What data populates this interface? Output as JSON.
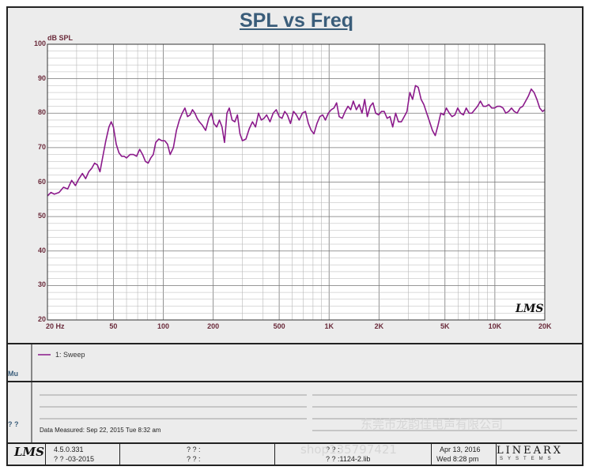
{
  "chart_data": {
    "type": "line",
    "title": "SPL vs Freq",
    "ylabel": "dB SPL",
    "ylim": [
      20,
      100
    ],
    "yticks": [
      "100",
      "90",
      "80",
      "70",
      "60",
      "50",
      "40",
      "30",
      "20"
    ],
    "xscale": "log",
    "xlim": [
      20,
      20000
    ],
    "xticks": [
      {
        "v": 20,
        "label": "20  Hz"
      },
      {
        "v": 50,
        "label": "50"
      },
      {
        "v": 100,
        "label": "100"
      },
      {
        "v": 200,
        "label": "200"
      },
      {
        "v": 500,
        "label": "500"
      },
      {
        "v": 1000,
        "label": "1K"
      },
      {
        "v": 2000,
        "label": "2K"
      },
      {
        "v": 5000,
        "label": "5K"
      },
      {
        "v": 10000,
        "label": "10K"
      },
      {
        "v": 20000,
        "label": "20K"
      }
    ],
    "grid": true,
    "series": [
      {
        "name": "1: Sweep",
        "color": "#8b1a8b",
        "points": [
          [
            20,
            56
          ],
          [
            21,
            57
          ],
          [
            22,
            56.5
          ],
          [
            23.5,
            57
          ],
          [
            25,
            58.5
          ],
          [
            26.5,
            58
          ],
          [
            28,
            60.5
          ],
          [
            29.5,
            59
          ],
          [
            31,
            61
          ],
          [
            32.5,
            62.5
          ],
          [
            34,
            61
          ],
          [
            35.5,
            63
          ],
          [
            37,
            64
          ],
          [
            38.5,
            65.5
          ],
          [
            40,
            65
          ],
          [
            41.5,
            63
          ],
          [
            43,
            67
          ],
          [
            45,
            72
          ],
          [
            47,
            76
          ],
          [
            48.5,
            77.5
          ],
          [
            50,
            76
          ],
          [
            52,
            71
          ],
          [
            54,
            68.5
          ],
          [
            56,
            67.5
          ],
          [
            58,
            67.5
          ],
          [
            60,
            67
          ],
          [
            63,
            68
          ],
          [
            66,
            68
          ],
          [
            69,
            67.5
          ],
          [
            72,
            69.5
          ],
          [
            75,
            68
          ],
          [
            78,
            66
          ],
          [
            81,
            65.5
          ],
          [
            84,
            67
          ],
          [
            87,
            68
          ],
          [
            90,
            71.5
          ],
          [
            94,
            72.5
          ],
          [
            98,
            72
          ],
          [
            102,
            72
          ],
          [
            106,
            71
          ],
          [
            110,
            68
          ],
          [
            115,
            70
          ],
          [
            120,
            75
          ],
          [
            125,
            78
          ],
          [
            130,
            80
          ],
          [
            135,
            81.5
          ],
          [
            140,
            79
          ],
          [
            145,
            79.5
          ],
          [
            150,
            81
          ],
          [
            155,
            80
          ],
          [
            160,
            78.5
          ],
          [
            165,
            77.5
          ],
          [
            172,
            76.5
          ],
          [
            180,
            75
          ],
          [
            188,
            78.5
          ],
          [
            195,
            80
          ],
          [
            202,
            77
          ],
          [
            210,
            76
          ],
          [
            218,
            78
          ],
          [
            226,
            76
          ],
          [
            234,
            71.5
          ],
          [
            242,
            80
          ],
          [
            250,
            81.5
          ],
          [
            260,
            78
          ],
          [
            270,
            77.5
          ],
          [
            280,
            79.5
          ],
          [
            290,
            74
          ],
          [
            300,
            72
          ],
          [
            315,
            72.5
          ],
          [
            330,
            75.5
          ],
          [
            345,
            77.5
          ],
          [
            360,
            76
          ],
          [
            375,
            80
          ],
          [
            390,
            78
          ],
          [
            405,
            78.5
          ],
          [
            420,
            79.5
          ],
          [
            440,
            77.5
          ],
          [
            460,
            80
          ],
          [
            480,
            81
          ],
          [
            500,
            79
          ],
          [
            520,
            78.5
          ],
          [
            540,
            80.5
          ],
          [
            560,
            79.5
          ],
          [
            585,
            77
          ],
          [
            610,
            80.5
          ],
          [
            635,
            79.5
          ],
          [
            660,
            78
          ],
          [
            690,
            80
          ],
          [
            720,
            80.5
          ],
          [
            750,
            77
          ],
          [
            780,
            75
          ],
          [
            810,
            74
          ],
          [
            845,
            77
          ],
          [
            880,
            79
          ],
          [
            915,
            79.5
          ],
          [
            950,
            78
          ],
          [
            990,
            80
          ],
          [
            1030,
            81
          ],
          [
            1070,
            81.5
          ],
          [
            1110,
            83
          ],
          [
            1150,
            79
          ],
          [
            1200,
            78.5
          ],
          [
            1250,
            80.5
          ],
          [
            1300,
            82
          ],
          [
            1350,
            81
          ],
          [
            1400,
            83.5
          ],
          [
            1460,
            81
          ],
          [
            1520,
            82.5
          ],
          [
            1580,
            80
          ],
          [
            1640,
            84
          ],
          [
            1700,
            79
          ],
          [
            1770,
            82
          ],
          [
            1840,
            83
          ],
          [
            1910,
            80
          ],
          [
            1990,
            79.5
          ],
          [
            2070,
            80.5
          ],
          [
            2150,
            80.5
          ],
          [
            2240,
            78.5
          ],
          [
            2330,
            79
          ],
          [
            2420,
            76
          ],
          [
            2520,
            80
          ],
          [
            2620,
            77.5
          ],
          [
            2730,
            77.5
          ],
          [
            2840,
            79
          ],
          [
            2950,
            80.5
          ],
          [
            3070,
            86
          ],
          [
            3190,
            84
          ],
          [
            3320,
            88
          ],
          [
            3450,
            87.5
          ],
          [
            3590,
            84
          ],
          [
            3730,
            82.5
          ],
          [
            3880,
            80
          ],
          [
            4040,
            77.5
          ],
          [
            4200,
            75
          ],
          [
            4370,
            73.5
          ],
          [
            4540,
            76.5
          ],
          [
            4720,
            80
          ],
          [
            4910,
            79.5
          ],
          [
            5100,
            81.5
          ],
          [
            5310,
            80
          ],
          [
            5520,
            79
          ],
          [
            5740,
            79.5
          ],
          [
            5970,
            81.5
          ],
          [
            6210,
            80
          ],
          [
            6460,
            79.5
          ],
          [
            6720,
            81.5
          ],
          [
            6990,
            80
          ],
          [
            7270,
            80
          ],
          [
            7560,
            81
          ],
          [
            7860,
            82
          ],
          [
            8180,
            83.5
          ],
          [
            8510,
            82
          ],
          [
            8850,
            82
          ],
          [
            9200,
            82.5
          ],
          [
            9570,
            81.5
          ],
          [
            9950,
            81.5
          ],
          [
            10350,
            82
          ],
          [
            10760,
            82
          ],
          [
            11200,
            81.5
          ],
          [
            11640,
            80
          ],
          [
            12110,
            80.5
          ],
          [
            12600,
            81.5
          ],
          [
            13100,
            80.5
          ],
          [
            13620,
            80
          ],
          [
            14170,
            81.5
          ],
          [
            14740,
            82
          ],
          [
            15330,
            83.5
          ],
          [
            15940,
            85
          ],
          [
            16580,
            87
          ],
          [
            17240,
            86
          ],
          [
            17930,
            84
          ],
          [
            18650,
            81.5
          ],
          [
            19400,
            80.5
          ],
          [
            20000,
            81
          ]
        ]
      }
    ]
  },
  "legend": {
    "label": "1: Sweep",
    "color": "#8b1a8b"
  },
  "info": {
    "measured": "Data Measured: Sep 22, 2015  Tue  8:32 am",
    "side_top": "Mu",
    "side_bottom": "? ?"
  },
  "footer": {
    "version": "4.5.0.331",
    "date": "? ?  -03-2015",
    "q1": "? ? :",
    "q2": "? ? :",
    "q3": "? ? :",
    "lib": "? ? :1124-2.lib",
    "date2": "Apr 13, 2016",
    "time2": "Wed  8:28 pm",
    "brand": "LINEARX",
    "brand_sub": "SYSTEMS"
  },
  "watermark": {
    "line1": "东莞市龙韵佳电声有限公司",
    "line2": "shop135797421"
  },
  "logo_text": "LMS"
}
